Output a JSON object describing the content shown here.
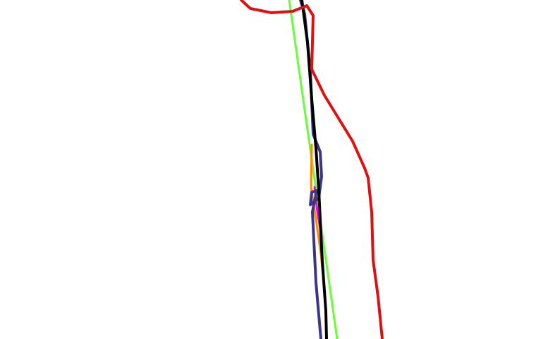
{
  "map": {
    "background_color": "#ffffff",
    "routes": [
      {
        "id": "green",
        "color": "#66ff33"
      },
      {
        "id": "orange",
        "color": "#ff8800"
      },
      {
        "id": "magenta",
        "color": "#ee00ee"
      },
      {
        "id": "indigo",
        "color": "#3d3585"
      },
      {
        "id": "black",
        "color": "#000000"
      },
      {
        "id": "red",
        "color": "#e01010"
      }
    ]
  }
}
